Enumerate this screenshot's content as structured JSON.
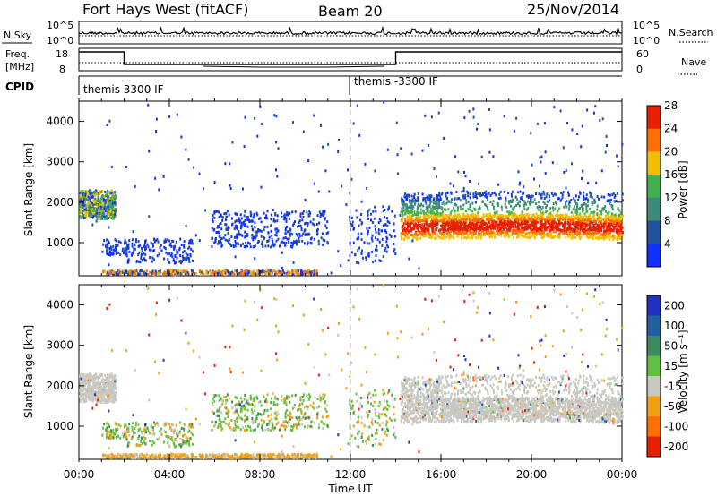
{
  "header": {
    "radar": "Fort Hays West (fitACF)",
    "beam": "Beam 20",
    "date": "25/Nov/2014"
  },
  "panels": {
    "nsky": {
      "left_label": "N.Sky",
      "right_label": "N.Search",
      "left_ticks": [
        "10^5",
        "10^0"
      ],
      "right_ticks": [
        "10^5",
        "10^0"
      ]
    },
    "freq": {
      "left_label_1": "Freq.",
      "left_label_2": "[MHz]",
      "cpid_label": "CPID",
      "right_label": "Nave",
      "left_ticks": [
        "18",
        "8"
      ],
      "right_ticks": [
        "60",
        "0"
      ],
      "cpid_segments": [
        "themis 3300 IF",
        "themis -3300 IF"
      ]
    }
  },
  "chart_data": [
    {
      "type": "heatmap",
      "name": "power",
      "ylabel": "Slant Range [km]",
      "ylim": [
        180,
        4500
      ],
      "yticks": [
        "1000",
        "2000",
        "3000",
        "4000"
      ],
      "xlim": [
        0,
        24
      ],
      "xticks": [
        "00:00",
        "04:00",
        "08:00",
        "12:00",
        "16:00",
        "20:00",
        "00:00"
      ],
      "colorbar": {
        "label": "Power [dB]",
        "ticks": [
          "4",
          "8",
          "12",
          "16",
          "20",
          "24",
          "28"
        ],
        "colors": [
          "#1230ff",
          "#2050a0",
          "#3c8a78",
          "#40b050",
          "#f0c000",
          "#ff7000",
          "#e82000"
        ]
      }
    },
    {
      "type": "heatmap",
      "name": "velocity",
      "ylabel": "Slant Range [km]",
      "ylim": [
        180,
        4500
      ],
      "yticks": [
        "1000",
        "2000",
        "3000",
        "4000"
      ],
      "xlim": [
        0,
        24
      ],
      "xticks": [
        "00:00",
        "04:00",
        "08:00",
        "12:00",
        "16:00",
        "20:00",
        "00:00"
      ],
      "xlabel": "Time UT",
      "colorbar": {
        "label": "Velocity [m s⁻¹]",
        "ticks": [
          "200",
          "100",
          "50",
          "15",
          "-15",
          "-50",
          "-100",
          "-200"
        ],
        "colors": [
          "#2030c0",
          "#2060a0",
          "#3c8a60",
          "#60c040",
          "#c8c8c0",
          "#f0a010",
          "#ff7000",
          "#e82000"
        ]
      }
    }
  ]
}
